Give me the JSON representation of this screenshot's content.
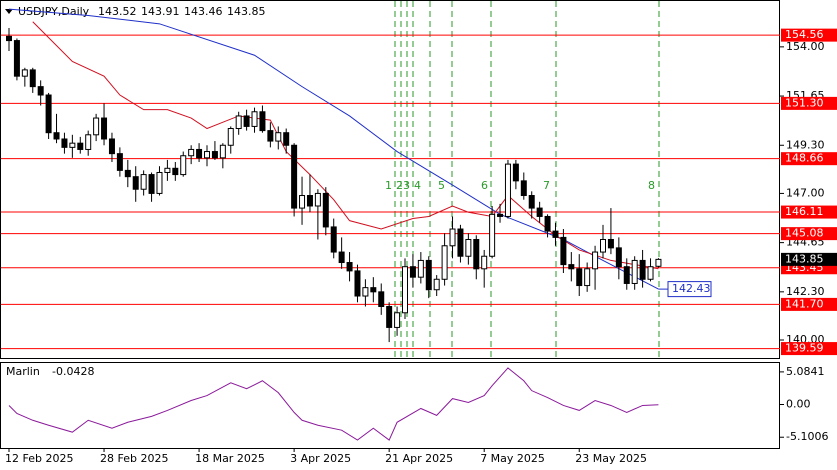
{
  "chart_data": {
    "type": "candlestick",
    "symbol": "USDJPY,Daily",
    "categories": [
      "12 Feb 2025",
      null,
      null,
      null,
      null,
      null,
      null,
      null,
      null,
      null,
      null,
      null,
      "28 Feb 2025",
      null,
      null,
      null,
      null,
      null,
      null,
      null,
      null,
      null,
      null,
      null,
      "18 Mar 2025",
      null,
      null,
      null,
      null,
      null,
      null,
      null,
      null,
      null,
      null,
      null,
      "3 Apr 2025",
      null,
      null,
      null,
      null,
      null,
      null,
      null,
      null,
      null,
      null,
      null,
      "21 Apr 2025",
      null,
      null,
      null,
      null,
      null,
      null,
      null,
      null,
      null,
      null,
      null,
      "7 May 2025",
      null,
      null,
      null,
      null,
      null,
      null,
      null,
      null,
      null,
      null,
      null,
      "23 May 2025",
      null,
      null,
      null,
      null,
      null,
      null,
      null,
      null,
      null,
      null
    ],
    "open": [
      154.5,
      154.3,
      152.6,
      152.9,
      152.1,
      151.7,
      149.9,
      149.6,
      149.2,
      149.4,
      149.1,
      149.8,
      150.6,
      149.6,
      148.9,
      148.1,
      147.8,
      147.2,
      147.9,
      147.0,
      148.0,
      148.2,
      147.9,
      148.8,
      149.1,
      148.7,
      149.0,
      148.7,
      149.3,
      150.1,
      150.7,
      150.2,
      150.9,
      150.0,
      149.5,
      149.9,
      149.3,
      146.3,
      146.9,
      146.4,
      147.0,
      145.4,
      144.2,
      143.7,
      143.3,
      142.1,
      142.5,
      142.3,
      141.6,
      140.6,
      141.3,
      143.5,
      143.0,
      143.8,
      142.4,
      142.9,
      144.5,
      145.3,
      144.0,
      144.8,
      143.4,
      144.0,
      146.0,
      145.9,
      148.4,
      147.6,
      146.9,
      146.3,
      145.9,
      145.2,
      144.9,
      143.6,
      143.4,
      142.6,
      143.4,
      144.2,
      144.8,
      144.4,
      143.5,
      142.7,
      143.8,
      142.9,
      143.52
    ],
    "high": [
      154.9,
      154.4,
      153.0,
      153.0,
      152.4,
      151.8,
      150.8,
      149.9,
      149.8,
      149.7,
      150.0,
      150.8,
      151.3,
      149.9,
      149.2,
      148.6,
      148.3,
      148.1,
      148.0,
      148.3,
      148.6,
      148.5,
      149.0,
      149.3,
      149.4,
      149.3,
      149.5,
      149.4,
      150.2,
      150.9,
      151.0,
      151.1,
      151.2,
      150.4,
      150.2,
      150.1,
      149.4,
      147.8,
      147.9,
      147.2,
      147.3,
      145.8,
      144.9,
      144.2,
      143.6,
      142.9,
      143.0,
      142.7,
      141.8,
      141.6,
      143.9,
      144.1,
      144.2,
      144.0,
      143.1,
      145.1,
      145.9,
      145.5,
      145.1,
      145.0,
      144.3,
      146.4,
      146.5,
      148.6,
      148.6,
      148.0,
      147.1,
      146.6,
      146.0,
      145.6,
      145.3,
      144.2,
      144.1,
      143.7,
      144.5,
      145.5,
      146.3,
      144.9,
      143.9,
      144.0,
      144.3,
      143.9,
      143.91
    ],
    "low": [
      153.8,
      152.4,
      152.1,
      151.8,
      151.2,
      149.6,
      149.4,
      148.9,
      148.7,
      148.9,
      148.8,
      149.5,
      149.3,
      148.5,
      147.8,
      147.3,
      146.6,
      146.9,
      146.6,
      146.9,
      147.6,
      147.6,
      147.8,
      148.4,
      148.5,
      148.3,
      148.6,
      148.2,
      148.9,
      149.8,
      150.0,
      149.9,
      149.9,
      149.2,
      149.1,
      148.9,
      145.9,
      145.5,
      146.1,
      144.8,
      145.0,
      143.9,
      143.4,
      142.8,
      141.8,
      141.6,
      141.8,
      141.2,
      139.9,
      140.2,
      141.0,
      142.5,
      142.7,
      142.0,
      142.1,
      142.6,
      143.9,
      143.7,
      143.6,
      142.9,
      142.5,
      143.9,
      145.6,
      145.8,
      147.2,
      146.7,
      145.8,
      145.6,
      144.9,
      144.5,
      143.2,
      142.8,
      142.1,
      142.3,
      142.4,
      143.9,
      144.1,
      142.9,
      142.4,
      142.4,
      142.5,
      142.8,
      143.46
    ],
    "close": [
      154.3,
      152.6,
      152.9,
      152.1,
      151.7,
      149.9,
      149.6,
      149.2,
      149.4,
      149.1,
      149.8,
      150.6,
      149.6,
      148.9,
      148.1,
      147.8,
      147.2,
      147.9,
      147.0,
      148.0,
      148.2,
      147.9,
      148.8,
      149.1,
      148.7,
      149.0,
      148.7,
      149.3,
      150.1,
      150.7,
      150.2,
      150.9,
      150.0,
      149.5,
      149.9,
      149.3,
      146.3,
      146.9,
      146.4,
      147.0,
      145.4,
      144.2,
      143.7,
      143.3,
      142.1,
      142.5,
      142.3,
      141.6,
      140.6,
      141.3,
      143.5,
      143.0,
      143.8,
      142.4,
      142.9,
      144.5,
      145.3,
      144.0,
      144.8,
      143.4,
      144.0,
      146.0,
      145.9,
      148.4,
      147.6,
      146.9,
      146.3,
      145.9,
      145.2,
      144.9,
      143.6,
      143.4,
      142.6,
      143.4,
      144.2,
      144.8,
      144.4,
      143.5,
      142.7,
      143.8,
      142.9,
      143.5,
      143.85
    ],
    "up_color": "#ffffff",
    "down_color": "#000000",
    "ylim": [
      139.14,
      156.19
    ],
    "yticks": [
      {
        "value": 154,
        "label": "154.00"
      },
      {
        "value": 151.65,
        "label": "151.65"
      },
      {
        "value": 149.3,
        "label": "149.30"
      },
      {
        "value": 147,
        "label": "147.00"
      },
      {
        "value": 144.65,
        "label": "144.65"
      },
      {
        "value": 142.3,
        "label": "142.30"
      },
      {
        "value": 140,
        "label": "140.00"
      }
    ],
    "levels": [
      154.56,
      {
        "value": 151.3,
        "label": "151.30"
      },
      148.66,
      146.11,
      145.08,
      143.45,
      {
        "value": 141.7,
        "label": "141.70"
      },
      139.59
    ],
    "level_color": "#ff0000",
    "lines": [
      {
        "color": "#1f2fc8",
        "x": [
          0,
          10,
          19,
          31,
          37,
          43,
          49,
          56,
          62,
          70,
          75,
          82
        ],
        "values": [
          155.8,
          155.5,
          155.1,
          153.6,
          152.1,
          150.7,
          149.0,
          147.4,
          146.0,
          144.8,
          143.8,
          142.43
        ]
      },
      {
        "color": "#d01020",
        "x": [
          3,
          8,
          12,
          14,
          17,
          20,
          23,
          25,
          29,
          33,
          35,
          38,
          41,
          43,
          47,
          51,
          53,
          56,
          58,
          61,
          63,
          66,
          69,
          72,
          76,
          79,
          82
        ],
        "values": [
          155.2,
          153.3,
          152.6,
          151.7,
          151.0,
          151.0,
          150.6,
          150.1,
          150.7,
          150.5,
          149.0,
          147.9,
          146.7,
          145.7,
          145.3,
          145.8,
          145.9,
          146.4,
          146.1,
          145.9,
          146.9,
          145.9,
          145.0,
          144.3,
          143.8,
          143.6,
          143.4
        ]
      }
    ],
    "event_labels": [
      "1",
      "2",
      "3",
      "4",
      "5",
      "6",
      "7",
      "8"
    ],
    "oscillator": {
      "name": "Marlin",
      "color": "#8b1a9b",
      "x": [
        0,
        1,
        3,
        5,
        8,
        10,
        13,
        15,
        18,
        20,
        23,
        25,
        28,
        30,
        32,
        34,
        36,
        37,
        39,
        42,
        44,
        46,
        48,
        49,
        52,
        54,
        56,
        58,
        60,
        61,
        63,
        65,
        66,
        68,
        70,
        72,
        74,
        76,
        78,
        80,
        82
      ],
      "values": [
        -0.15,
        -1.39,
        -2.46,
        -3.23,
        -4.31,
        -2.46,
        -3.7,
        -2.77,
        -1.85,
        -0.92,
        0.62,
        1.39,
        3.39,
        2.46,
        3.7,
        1.85,
        -1.23,
        -2.46,
        -3.23,
        -4.0,
        -5.54,
        -3.7,
        -5.54,
        -2.77,
        -0.62,
        -1.69,
        0.92,
        0.31,
        1.39,
        2.93,
        5.7,
        3.7,
        2.16,
        1.08,
        -0.15,
        -0.92,
        0.62,
        -0.15,
        -1.23,
        -0.15,
        -0.0428
      ],
      "ylim": [
        -6.78,
        6.47
      ],
      "yticks": [
        5.0841,
        {
          "value": 0,
          "label": "0.00"
        },
        -5.1006
      ]
    }
  }
}
